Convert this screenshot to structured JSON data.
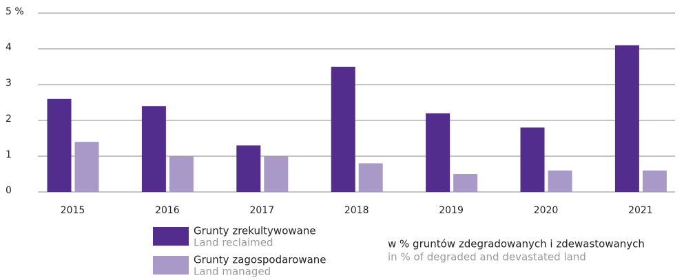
{
  "chart_data": {
    "type": "bar",
    "categories": [
      "2015",
      "2016",
      "2017",
      "2018",
      "2019",
      "2020",
      "2021"
    ],
    "series": [
      {
        "name": "Grunty zrekultywowane",
        "name_en": "Land reclaimed",
        "color": "#532d8e",
        "values": [
          2.6,
          2.4,
          1.3,
          3.5,
          2.2,
          1.8,
          4.1
        ]
      },
      {
        "name": "Grunty zagospodarowane",
        "name_en": "Land managed",
        "color": "#a899c8",
        "values": [
          1.4,
          1.0,
          1.0,
          0.8,
          0.5,
          0.6,
          0.6
        ]
      }
    ],
    "annotation": "w % gruntów zdegradowanych i zdewastowanych",
    "annotation_en": "in % of degraded and devastated land",
    "ylim": [
      0,
      5
    ],
    "yticks": [
      0,
      1,
      2,
      3,
      4,
      {
        "value": 5,
        "label": "5 %"
      }
    ],
    "grid": true
  }
}
